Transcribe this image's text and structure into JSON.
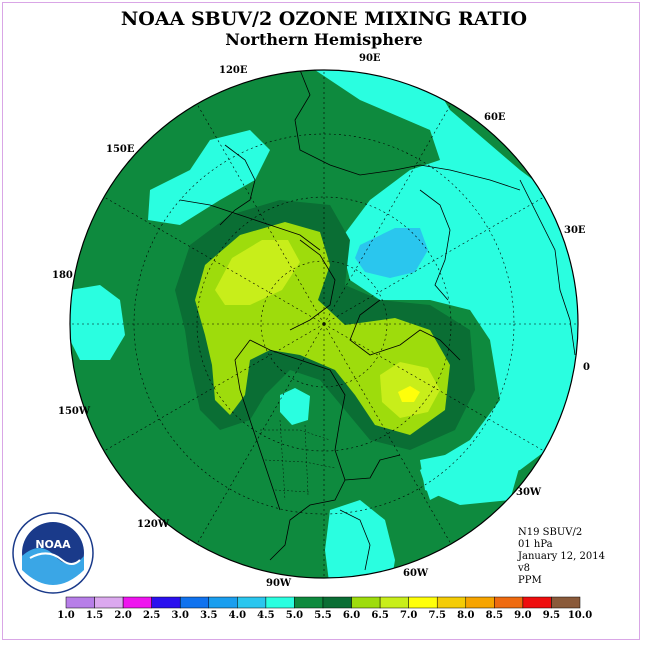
{
  "title": "NOAA SBUV/2 OZONE MIXING RATIO",
  "subtitle": "Northern Hemisphere",
  "longitude_labels": [
    "90E",
    "60E",
    "30E",
    "0",
    "30W",
    "60W",
    "90W",
    "120W",
    "150W",
    "180",
    "150E",
    "120E"
  ],
  "info": {
    "satellite": "N19 SBUV/2",
    "pressure": "01 hPa",
    "date": "January 12, 2014",
    "version": "v8",
    "units": "PPM"
  },
  "colorbar": {
    "ticks": [
      "1.0",
      "1.5",
      "2.0",
      "2.5",
      "3.0",
      "3.5",
      "4.0",
      "4.5",
      "5.0",
      "5.5",
      "6.0",
      "6.5",
      "7.0",
      "7.5",
      "8.0",
      "8.5",
      "9.0",
      "9.5",
      "10.0"
    ],
    "colors": [
      "#b77ee8",
      "#dba8ee",
      "#ee14ee",
      "#2a10ee",
      "#1072ee",
      "#1a9eee",
      "#2ac6ee",
      "#2afee0",
      "#0e8a3e",
      "#0a6e34",
      "#9edc0c",
      "#c8ee1a",
      "#ffff0a",
      "#f4cc06",
      "#f6a400",
      "#ee6a10",
      "#ee0e0e",
      "#8a5a3a"
    ]
  },
  "logo": {
    "text": "NOAA"
  }
}
